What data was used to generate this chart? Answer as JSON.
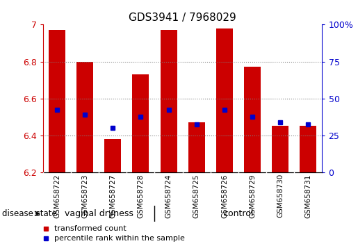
{
  "title": "GDS3941 / 7968029",
  "samples": [
    "GSM658722",
    "GSM658723",
    "GSM658727",
    "GSM658728",
    "GSM658724",
    "GSM658725",
    "GSM658726",
    "GSM658729",
    "GSM658730",
    "GSM658731"
  ],
  "bar_tops": [
    6.97,
    6.8,
    6.38,
    6.73,
    6.97,
    6.47,
    6.98,
    6.77,
    6.45,
    6.45
  ],
  "bar_bottoms": [
    6.2,
    6.2,
    6.2,
    6.2,
    6.2,
    6.2,
    6.2,
    6.2,
    6.2,
    6.2
  ],
  "percentile_values": [
    6.54,
    6.51,
    6.44,
    6.5,
    6.54,
    6.46,
    6.54,
    6.5,
    6.47,
    6.46
  ],
  "bar_color": "#cc0000",
  "percentile_color": "#0000cc",
  "ylim_left": [
    6.2,
    7.0
  ],
  "ylim_right": [
    0,
    100
  ],
  "yticks_left": [
    6.2,
    6.4,
    6.6,
    6.8,
    7
  ],
  "yticks_right": [
    0,
    25,
    50,
    75,
    100
  ],
  "grid_values": [
    6.4,
    6.6,
    6.8
  ],
  "groups": [
    {
      "label": "vaginal dryness",
      "samples": [
        0,
        1,
        2,
        3
      ],
      "color": "#77ee77"
    },
    {
      "label": "control",
      "samples": [
        4,
        5,
        6,
        7,
        8,
        9
      ],
      "color": "#77ee77"
    }
  ],
  "disease_state_label": "disease state",
  "legend_items": [
    {
      "label": "transformed count",
      "color": "#cc0000"
    },
    {
      "label": "percentile rank within the sample",
      "color": "#0000cc"
    }
  ],
  "bar_width": 0.6,
  "bg_color": "#ffffff",
  "plot_bg": "#ffffff",
  "axis_color_left": "#cc0000",
  "axis_color_right": "#0000cc",
  "title_fontsize": 11,
  "tick_fontsize": 9,
  "label_fontsize": 9
}
